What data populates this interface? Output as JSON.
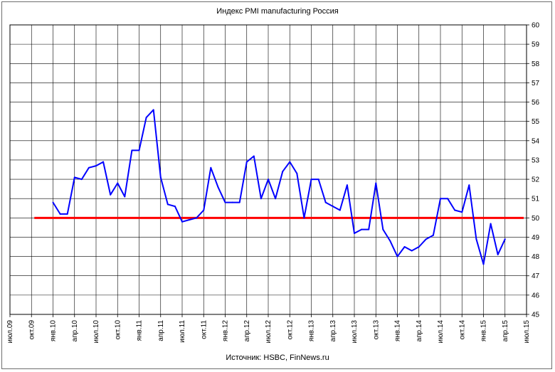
{
  "chart_data": {
    "type": "line",
    "title": "Индекс PMI manufacturing Россия",
    "source": "Источник: HSBC, FinNews.ru",
    "ylim": [
      45,
      60
    ],
    "yticks": [
      "45",
      "46",
      "47",
      "48",
      "49",
      "50",
      "51",
      "52",
      "53",
      "54",
      "55",
      "56",
      "57",
      "58",
      "59",
      "60"
    ],
    "xticks": [
      "июл.09",
      "окт.09",
      "янв.10",
      "апр.10",
      "июл.10",
      "окт.10",
      "янв.11",
      "апр.11",
      "июл.11",
      "окт.11",
      "янв.12",
      "апр.12",
      "июл.12",
      "окт.12",
      "янв.13",
      "апр.13",
      "июл.13",
      "окт.13",
      "янв.14",
      "апр.14",
      "июл.14",
      "окт.14",
      "янв.15",
      "апр.15",
      "июл.15"
    ],
    "grid": true,
    "series": [
      {
        "color": "#0000ff",
        "x_start": "янв.10",
        "values": [
          50.8,
          50.2,
          50.2,
          52.1,
          52.0,
          52.6,
          52.7,
          52.9,
          51.2,
          51.8,
          51.1,
          53.5,
          53.5,
          55.2,
          55.6,
          52.1,
          50.7,
          50.6,
          49.8,
          49.9,
          50.0,
          50.4,
          52.6,
          51.6,
          50.8,
          50.8,
          50.8,
          52.9,
          53.2,
          51.0,
          52.0,
          51.0,
          52.4,
          52.9,
          52.3,
          50.0,
          52.0,
          52.0,
          50.8,
          50.6,
          50.4,
          51.7,
          49.2,
          49.4,
          49.4,
          51.8,
          49.4,
          48.8,
          48.0,
          48.5,
          48.3,
          48.5,
          48.9,
          49.1,
          51.0,
          51.0,
          50.4,
          50.3,
          51.7,
          48.9,
          47.6,
          49.7,
          48.1,
          48.9
        ]
      },
      {
        "color": "#ff0000",
        "x_start": "окт.09",
        "x_end": "июл.15",
        "values": [
          50,
          50
        ]
      }
    ]
  }
}
